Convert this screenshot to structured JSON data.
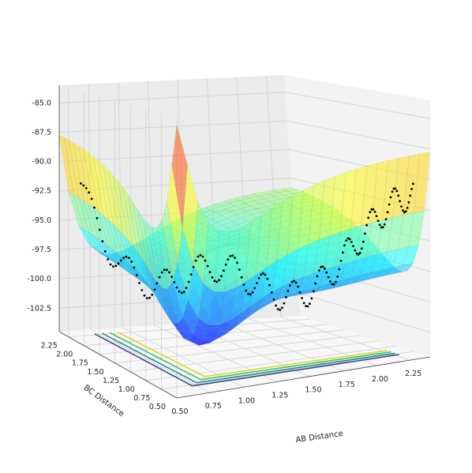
{
  "chart_data": {
    "type": "surface3d",
    "title": "",
    "xlabel": "AB Distance",
    "ylabel": "BC Distance",
    "zlabel": "",
    "x_ticks": [
      "0.50",
      "0.75",
      "1.00",
      "1.25",
      "1.50",
      "1.75",
      "2.00",
      "2.25"
    ],
    "y_ticks": [
      "2.25",
      "2.00",
      "1.75",
      "1.50",
      "1.25",
      "1.00",
      "0.75",
      "0.50"
    ],
    "z_ticks": [
      "-85.0",
      "-87.5",
      "-90.0",
      "-92.5",
      "-95.0",
      "-97.5",
      "-100.0",
      "-102.5"
    ],
    "xlim": [
      0.5,
      2.4
    ],
    "ylim": [
      0.5,
      2.4
    ],
    "zlim": [
      -104.5,
      -83.5
    ],
    "colormap": "jet",
    "surface_alpha": 0.5,
    "z_cap": -84.0,
    "grid": true,
    "legend": "none",
    "overlays": [
      {
        "kind": "contour-projection",
        "colors": [
          "#3b4b8c",
          "#2a8c8c",
          "#3fbf6f",
          "#d9d92a"
        ]
      },
      {
        "kind": "dotted-trajectory",
        "color": "#000000"
      }
    ]
  }
}
